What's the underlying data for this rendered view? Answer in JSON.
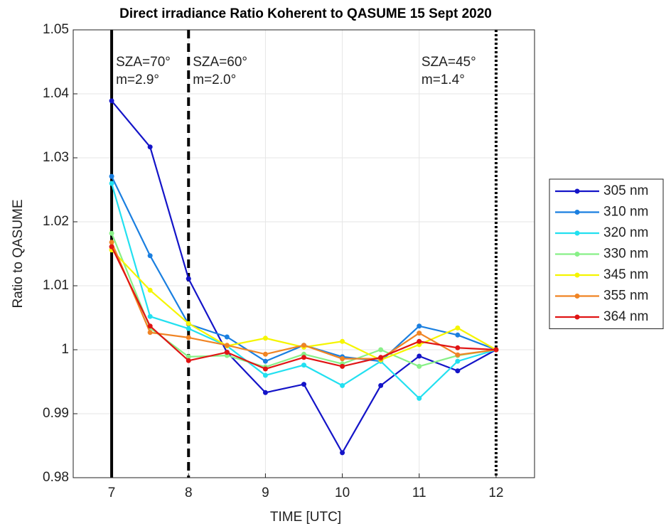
{
  "chart_data": {
    "type": "line",
    "title": "Direct irradiance Ratio Koherent to QASUME 15 Sept 2020",
    "x_label": "TIME [UTC]",
    "y_label": "Ratio to QASUME",
    "x": [
      7,
      7.5,
      8,
      8.5,
      9,
      9.5,
      10,
      10.5,
      11,
      11.5,
      12
    ],
    "xlim": [
      6.5,
      12.5
    ],
    "ylim": [
      0.98,
      1.05
    ],
    "xticks": [
      7,
      8,
      9,
      10,
      11,
      12
    ],
    "yticks": [
      0.98,
      0.99,
      1,
      1.01,
      1.02,
      1.03,
      1.04,
      1.05
    ],
    "grid": true,
    "legend": "outside-right",
    "series": [
      {
        "name": "305 nm",
        "color": "#1414c8",
        "values": [
          1.0389,
          1.0317,
          1.0111,
          0.9996,
          0.9933,
          0.9946,
          0.9839,
          0.9944,
          0.999,
          0.9967,
          1
        ]
      },
      {
        "name": "310 nm",
        "color": "#1a7fe0",
        "values": [
          1.0271,
          1.0147,
          1.004,
          1.002,
          0.9982,
          1.0007,
          0.9989,
          0.9982,
          1.0037,
          1.0023,
          1
        ]
      },
      {
        "name": "320 nm",
        "color": "#22e0f0",
        "values": [
          1.026,
          1.0052,
          1.0033,
          1.0006,
          0.996,
          0.9976,
          0.9944,
          0.9982,
          0.9924,
          0.9982,
          1
        ]
      },
      {
        "name": "330 nm",
        "color": "#88f088",
        "values": [
          1.0182,
          1.0034,
          0.9989,
          0.9991,
          0.9973,
          0.9993,
          0.9978,
          1.0,
          0.9974,
          0.9991,
          1
        ]
      },
      {
        "name": "345 nm",
        "color": "#f5f500",
        "values": [
          1.0156,
          1.0093,
          1.0041,
          1.0006,
          1.0018,
          1.0004,
          1.0013,
          0.9984,
          1.0008,
          1.0034,
          1
        ]
      },
      {
        "name": "355 nm",
        "color": "#f08424",
        "values": [
          1.0168,
          1.0027,
          1.0019,
          1.0007,
          0.9993,
          1.0007,
          0.9986,
          0.9986,
          1.0026,
          0.9992,
          1
        ]
      },
      {
        "name": "364 nm",
        "color": "#e01414",
        "values": [
          1.0161,
          1.0037,
          0.9983,
          0.9996,
          0.997,
          0.9988,
          0.9974,
          0.9988,
          1.0013,
          1.0003,
          1
        ]
      }
    ],
    "vlines": [
      {
        "x": 7,
        "style": "solid",
        "labels": [
          "SZA=70°",
          "m=2.9°"
        ]
      },
      {
        "x": 8,
        "style": "dashed",
        "labels": [
          "SZA=60°",
          "m=2.0°"
        ]
      },
      {
        "x": 12,
        "style": "dotted",
        "labels": [
          "SZA=45°",
          "m=1.4°"
        ]
      }
    ]
  }
}
